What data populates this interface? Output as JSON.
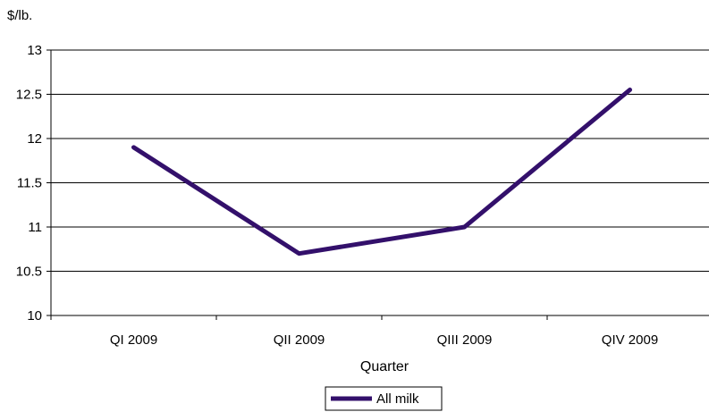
{
  "chart_data": {
    "type": "line",
    "title": "",
    "ylabel": "$/lb.",
    "xlabel": "Quarter",
    "categories": [
      "QI 2009",
      "QII 2009",
      "QIII 2009",
      "QIV 2009"
    ],
    "series": [
      {
        "name": "All milk",
        "values": [
          11.9,
          10.7,
          11.0,
          12.55
        ],
        "color": "#33106b"
      }
    ],
    "ylim": [
      10,
      13
    ],
    "yticks": [
      "10",
      "10.5",
      "11",
      "11.5",
      "12",
      "12.5",
      "13"
    ],
    "grid": true,
    "legend_position": "bottom-center"
  }
}
